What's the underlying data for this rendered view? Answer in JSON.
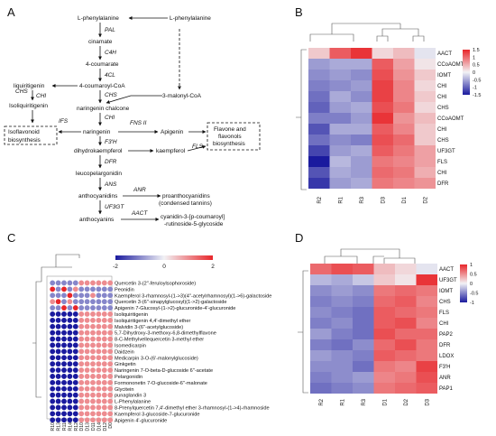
{
  "panels": {
    "a": "A",
    "b": "B",
    "c": "C",
    "d": "D"
  },
  "pathway": {
    "l_phe_left": "L-phenylalanine",
    "l_phe_right": "L-phenylalanine",
    "pal": "PAL",
    "cinamate": "cinamate",
    "c4h": "C4H",
    "coumarate": "4-coumarate",
    "fourcl": "4CL",
    "liquiritigenin": "liquiritigenin",
    "coumaroyl_coa": "4-coumaroyl-CoA",
    "chs1": "CHS",
    "chs2": "CHS",
    "chi1": "CHI",
    "isoliquiritigenin": "Isoliquiritigenin",
    "malonyl": "3-malonyl-CoA",
    "naringenin_chalcone": "naringenin chalcone",
    "chi2": "CHI",
    "ifs": "IFS",
    "naringenin": "naringenin",
    "fns": "FNS II",
    "apigenin": "Apigenin",
    "isoflavonoid_box": [
      "Isoflavonoid",
      "biosynthesis"
    ],
    "flavone_box": [
      "Flavone and",
      "flavonols",
      "biosynthesis"
    ],
    "f3h": "F3'H",
    "dihydrokaempferol": "dihydrokaempferol",
    "fls": "FLS",
    "kaempferol": "kaempferol",
    "dfr": "DFR",
    "leucopelargonidin": "leucopelargonidin",
    "ans": "ANS",
    "anr": "ANR",
    "anthocyanidins": "anthocyanidins",
    "proanthocyanidins": [
      "proanthocyanidins",
      "(condensed tannins)"
    ],
    "uf3gt": "UF3GT",
    "aact": "AACT",
    "anthocyanins": "anthocyanins",
    "cyanidin": [
      "cyanidin-3-[p-coumaroyl]",
      "-rutinoside-5-glycoside"
    ]
  },
  "heatmap_b": {
    "rows": [
      "AACT",
      "CCoAOMT",
      "IOMT",
      "CHI",
      "CHI",
      "CHS",
      "CCoAOMT",
      "CHI",
      "CHS",
      "UF3GT",
      "FLS",
      "CHI",
      "DFR"
    ],
    "cols": [
      "R2",
      "R1",
      "R3",
      "D3",
      "D1",
      "D2"
    ],
    "values": [
      [
        0.3,
        1.1,
        1.4,
        0.2,
        0.4,
        -0.1
      ],
      [
        -0.6,
        -0.5,
        -0.5,
        1.1,
        0.6,
        0.1
      ],
      [
        -0.7,
        -0.6,
        -0.7,
        1.2,
        0.7,
        0.3
      ],
      [
        -0.8,
        -0.7,
        -0.6,
        1.3,
        0.8,
        0.2
      ],
      [
        -0.9,
        -0.5,
        -0.7,
        1.3,
        0.8,
        0.3
      ],
      [
        -1.0,
        -0.6,
        -0.5,
        1.2,
        0.9,
        0.2
      ],
      [
        -0.8,
        -0.8,
        -0.6,
        1.4,
        0.7,
        0.4
      ],
      [
        -1.1,
        -0.5,
        -0.5,
        1.1,
        0.8,
        0.3
      ],
      [
        -0.9,
        -0.7,
        -0.8,
        1.2,
        1.0,
        0.3
      ],
      [
        -1.2,
        -0.6,
        -0.5,
        1.1,
        0.9,
        0.6
      ],
      [
        -1.5,
        -0.4,
        -0.6,
        0.9,
        0.8,
        0.6
      ],
      [
        -1.1,
        -0.5,
        -0.6,
        1.0,
        0.9,
        0.5
      ],
      [
        -1.3,
        -0.6,
        -0.5,
        0.9,
        0.8,
        0.7
      ]
    ],
    "legend_ticks": [
      "1.5",
      "1",
      "0.5",
      "0",
      "-0.5",
      "-1",
      "-1.5"
    ]
  },
  "heatmap_d": {
    "rows": [
      "AACT",
      "UF3GT",
      "IOMT",
      "CHS",
      "FLS",
      "CHI",
      "PAP2",
      "DFR",
      "LDOX",
      "F3'H",
      "ANR",
      "PAP1"
    ],
    "cols": [
      "R2",
      "R1",
      "R3",
      "D1",
      "D2",
      "D3"
    ],
    "values": [
      [
        1.0,
        1.2,
        1.1,
        0.4,
        0.2,
        -0.1
      ],
      [
        -0.4,
        -0.5,
        -0.3,
        0.3,
        0.1,
        1.4
      ],
      [
        -0.7,
        -0.6,
        -0.7,
        0.9,
        1.0,
        0.9
      ],
      [
        -0.8,
        -0.7,
        -0.8,
        1.0,
        1.1,
        0.8
      ],
      [
        -0.7,
        -0.8,
        -0.9,
        1.1,
        1.0,
        0.9
      ],
      [
        -0.8,
        -0.7,
        -0.9,
        1.1,
        1.2,
        0.8
      ],
      [
        -0.6,
        -0.8,
        -0.9,
        1.2,
        1.0,
        1.0
      ],
      [
        -0.8,
        -0.9,
        -0.7,
        1.0,
        1.2,
        0.9
      ],
      [
        -0.6,
        -0.7,
        -0.8,
        1.1,
        1.0,
        0.9
      ],
      [
        -0.7,
        -0.7,
        -0.9,
        0.9,
        0.8,
        1.3
      ],
      [
        -0.8,
        -0.7,
        -0.6,
        0.8,
        0.9,
        1.2
      ],
      [
        -0.9,
        -0.8,
        -0.7,
        0.9,
        1.0,
        1.1
      ]
    ],
    "legend_ticks": [
      "1",
      "0.5",
      "0",
      "-0.5",
      "-1"
    ]
  },
  "bubble_c": {
    "legend_ticks": [
      "-2",
      "0",
      "2"
    ],
    "compounds": [
      "Quercetin 3-(2''-feruloylsophoroside)",
      "Peonidin",
      "Kaempferol 3-rhamnosyl-(1->3)(4''-acetylrhamnosyl)(1->6)-galactoside",
      "Quercetin 3-(6''-sinapylglucosyl)(1->2)-galactoside",
      "Apigenin 7-Glucosyl-(1->2)-glucuronide-4'-glucuronide",
      "Isoliquiritigenin",
      "Isoliquiritigenin 4,4'-dimethyl ether",
      "Malvidin 3-(6''-acetylglucoside)",
      "5,7-Dihydroxy-3-methoxy-6,8-dimethylflavone",
      "8-C-Methylvellequercetin 3-methyl ether",
      "Isomedicarpin",
      "Daidzein",
      "Medicarpin 3-O-(6'-malonylglucoside)",
      "Ginkgetin",
      "Naringenin 7-O-beta-D-glucoside 6''-acetate",
      "Pelargonidin",
      "Formononetin 7-O-glucoside-6''-malonate",
      "Glycitein",
      "punaglandin 3",
      "L-Phenylalanine",
      "8-Prenylquercetin 7,4'-dimethyl ether 3-rhamnosyl-(1->4)-rhamnoside",
      "Kaempferol 3-glucoside-7-glucuronide",
      "Apigenin 4'-glucuronide"
    ],
    "cols": [
      "R10",
      "R13",
      "R11",
      "R14",
      "R12",
      "D10",
      "D13",
      "D11",
      "D14",
      "D12",
      "D0"
    ],
    "values": [
      [
        -1,
        -1,
        -1,
        -1,
        -1,
        1,
        1,
        1,
        1,
        1,
        1
      ],
      [
        2,
        -1,
        2,
        -1,
        1,
        -1,
        -1,
        -1,
        -1,
        -1,
        -1
      ],
      [
        -1,
        -1,
        -1,
        2,
        -1,
        -1,
        -1,
        1,
        -1,
        -1,
        -1
      ],
      [
        1,
        2,
        -1,
        1,
        -1,
        -1,
        -1,
        -1,
        -1,
        -1,
        -1
      ],
      [
        -1,
        -1,
        2,
        -1,
        2,
        -1,
        -1,
        -1,
        -1,
        -1,
        -1
      ],
      [
        -2,
        -2,
        -2,
        -2,
        -2,
        1,
        1,
        1,
        1,
        1,
        1
      ],
      [
        -2,
        -2,
        -2,
        -2,
        -2,
        1,
        1,
        1,
        1,
        1,
        1
      ],
      [
        -2,
        -2,
        -2,
        -2,
        -2,
        1,
        1,
        1,
        1,
        1,
        1
      ],
      [
        -2,
        -2,
        -2,
        -2,
        -2,
        1,
        1,
        1,
        1,
        1,
        1
      ],
      [
        -2,
        -2,
        -2,
        -2,
        -2,
        1,
        1,
        1,
        1,
        1,
        1
      ],
      [
        -2,
        -2,
        -2,
        -2,
        -2,
        1,
        1,
        1,
        1,
        1,
        1
      ],
      [
        -2,
        -2,
        -2,
        -2,
        -2,
        1,
        1,
        1,
        1,
        1,
        1
      ],
      [
        -2,
        -2,
        -2,
        -2,
        -2,
        1,
        1,
        1,
        1,
        1,
        1
      ],
      [
        -2,
        -2,
        -2,
        -2,
        -2,
        1,
        1,
        1,
        1,
        1,
        1
      ],
      [
        -2,
        -2,
        -2,
        -2,
        -2,
        1,
        1,
        1,
        1,
        1,
        1
      ],
      [
        -2,
        -2,
        -2,
        -2,
        -2,
        1,
        1,
        1,
        1,
        1,
        1
      ],
      [
        -2,
        -2,
        -2,
        -2,
        -2,
        1,
        1,
        1,
        1,
        1,
        1
      ],
      [
        -2,
        -2,
        -2,
        -2,
        -2,
        1,
        1,
        1,
        1,
        1,
        1
      ],
      [
        -2,
        -2,
        -2,
        -2,
        -2,
        1,
        1,
        1,
        1,
        1,
        1
      ],
      [
        -2,
        -2,
        -2,
        -2,
        -2,
        1,
        1,
        1,
        1,
        1,
        1
      ],
      [
        -2,
        -2,
        -2,
        -2,
        -2,
        1,
        1,
        1,
        1,
        1,
        1
      ],
      [
        -2,
        -2,
        -2,
        -2,
        -2,
        1,
        1,
        1,
        1,
        1,
        1
      ],
      [
        -2,
        -2,
        -2,
        -2,
        -2,
        1,
        1,
        1,
        1,
        1,
        1
      ]
    ]
  },
  "colors": {
    "low": "#1a1a9e",
    "mid": "#f2f2f5",
    "high": "#e8262a"
  }
}
